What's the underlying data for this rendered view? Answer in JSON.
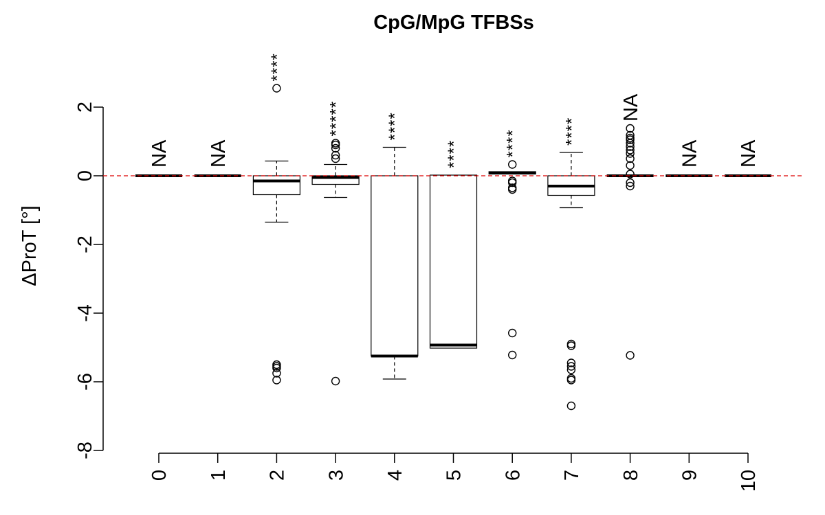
{
  "chart_data": {
    "type": "box",
    "title": "CpG/MpG TFBSs",
    "ylabel": "ΔProT [°]",
    "xlabel": "",
    "ylim": [
      -8,
      2.6
    ],
    "yticks": [
      -8,
      -6,
      -4,
      -2,
      0,
      2
    ],
    "reference_line": {
      "y": 0,
      "color": "#dd0000",
      "style": "dashed"
    },
    "categories": [
      "0",
      "1",
      "2",
      "3",
      "4",
      "5",
      "6",
      "7",
      "8",
      "9",
      "10"
    ],
    "boxes": [
      {
        "x": "0",
        "whisker_low": 0,
        "q1": 0,
        "median": 0,
        "q3": 0,
        "whisker_high": 0,
        "outliers": [],
        "annotation": "NA"
      },
      {
        "x": "1",
        "whisker_low": 0,
        "q1": 0,
        "median": 0,
        "q3": 0,
        "whisker_high": 0,
        "outliers": [],
        "annotation": "NA"
      },
      {
        "x": "2",
        "whisker_low": -1.35,
        "q1": -0.55,
        "median": -0.15,
        "q3": 0,
        "whisker_high": 0.43,
        "outliers": [
          2.55,
          -5.5,
          -5.55,
          -5.6,
          -5.75,
          -5.95
        ],
        "annotation": "****"
      },
      {
        "x": "3",
        "whisker_low": -0.63,
        "q1": -0.25,
        "median": -0.05,
        "q3": 0,
        "whisker_high": 0.33,
        "outliers": [
          0.95,
          0.9,
          0.8,
          0.6,
          0.5,
          -5.98
        ],
        "annotation": "*****"
      },
      {
        "x": "4",
        "whisker_low": -5.92,
        "q1": -5.25,
        "median": -5.25,
        "q3": 0,
        "whisker_high": 0.83,
        "outliers": [],
        "annotation": "****"
      },
      {
        "x": "5",
        "whisker_low": -5.02,
        "q1": -5.02,
        "median": -4.93,
        "q3": 0.02,
        "whisker_high": 0.02,
        "outliers": [],
        "annotation": "****"
      },
      {
        "x": "6",
        "whisker_low": 0.05,
        "q1": 0.05,
        "median": 0.08,
        "q3": 0.12,
        "whisker_high": 0.12,
        "outliers": [
          0.33,
          -0.15,
          -0.2,
          -0.35,
          -0.4,
          -4.58,
          -5.22
        ],
        "annotation": "****"
      },
      {
        "x": "7",
        "whisker_low": -0.93,
        "q1": -0.57,
        "median": -0.3,
        "q3": 0,
        "whisker_high": 0.68,
        "outliers": [
          -4.9,
          -4.95,
          -5.45,
          -5.55,
          -5.65,
          -5.9,
          -5.95,
          -6.7
        ],
        "annotation": "****"
      },
      {
        "x": "8",
        "whisker_low": 0,
        "q1": 0,
        "median": 0,
        "q3": 0,
        "whisker_high": 0,
        "outliers": [
          1.38,
          1.18,
          1.1,
          1.05,
          0.95,
          0.85,
          0.75,
          0.65,
          0.5,
          0.3,
          0.05,
          -0.2,
          -0.3,
          -5.23
        ],
        "annotation": "NA"
      },
      {
        "x": "9",
        "whisker_low": 0,
        "q1": 0,
        "median": 0,
        "q3": 0,
        "whisker_high": 0,
        "outliers": [],
        "annotation": "NA"
      },
      {
        "x": "10",
        "whisker_low": 0,
        "q1": 0,
        "median": 0,
        "q3": 0,
        "whisker_high": 0,
        "outliers": [],
        "annotation": "NA"
      }
    ],
    "grid": false,
    "legend": "none"
  }
}
